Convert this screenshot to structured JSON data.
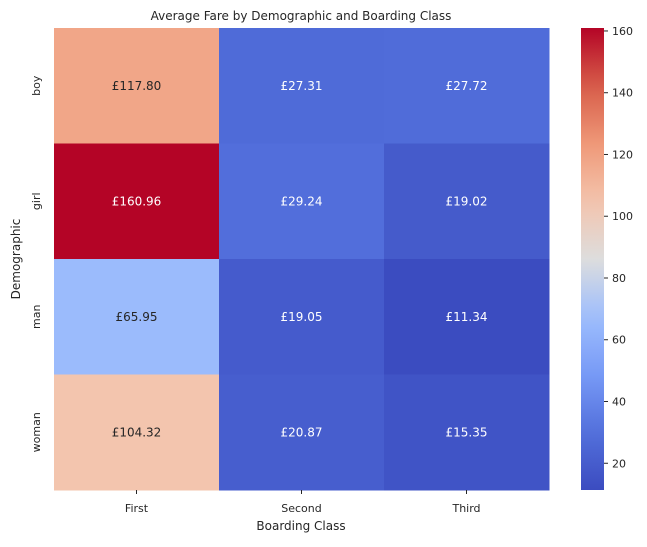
{
  "chart_data": {
    "type": "heatmap",
    "title": "Average Fare by Demographic and Boarding Class",
    "xlabel": "Boarding Class",
    "ylabel": "Demographic",
    "x_categories": [
      "First",
      "Second",
      "Third"
    ],
    "y_categories": [
      "boy",
      "girl",
      "man",
      "woman"
    ],
    "values": [
      [
        117.8,
        27.31,
        27.72
      ],
      [
        160.96,
        29.24,
        19.02
      ],
      [
        65.95,
        19.05,
        11.34
      ],
      [
        104.32,
        20.87,
        15.35
      ]
    ],
    "cell_labels": [
      [
        "£117.80",
        "£27.31",
        "£27.72"
      ],
      [
        "£160.96",
        "£29.24",
        "£19.02"
      ],
      [
        "£65.95",
        "£19.05",
        "£11.34"
      ],
      [
        "£104.32",
        "£20.87",
        "£15.35"
      ]
    ],
    "colormap": "coolwarm",
    "vmin": 11.34,
    "vmax": 160.96,
    "colorbar_ticks": [
      20,
      40,
      60,
      80,
      100,
      120,
      140,
      160
    ]
  }
}
